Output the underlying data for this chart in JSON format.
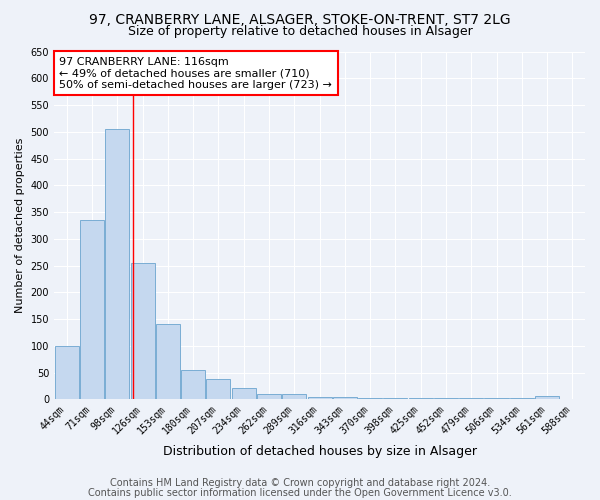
{
  "title1": "97, CRANBERRY LANE, ALSAGER, STOKE-ON-TRENT, ST7 2LG",
  "title2": "Size of property relative to detached houses in Alsager",
  "xlabel": "Distribution of detached houses by size in Alsager",
  "ylabel": "Number of detached properties",
  "categories": [
    "44sqm",
    "71sqm",
    "98sqm",
    "126sqm",
    "153sqm",
    "180sqm",
    "207sqm",
    "234sqm",
    "262sqm",
    "289sqm",
    "316sqm",
    "343sqm",
    "370sqm",
    "398sqm",
    "425sqm",
    "452sqm",
    "479sqm",
    "506sqm",
    "534sqm",
    "561sqm",
    "588sqm"
  ],
  "values": [
    100,
    335,
    505,
    255,
    140,
    55,
    38,
    22,
    10,
    10,
    5,
    5,
    3,
    3,
    3,
    3,
    3,
    3,
    3,
    7,
    0
  ],
  "bar_color": "#c5d8ef",
  "bar_edge_color": "#7aadd4",
  "red_line_x": 2.62,
  "annotation_lines": [
    "97 CRANBERRY LANE: 116sqm",
    "← 49% of detached houses are smaller (710)",
    "50% of semi-detached houses are larger (723) →"
  ],
  "footer1": "Contains HM Land Registry data © Crown copyright and database right 2024.",
  "footer2": "Contains public sector information licensed under the Open Government Licence v3.0.",
  "ylim": [
    0,
    650
  ],
  "yticks": [
    0,
    50,
    100,
    150,
    200,
    250,
    300,
    350,
    400,
    450,
    500,
    550,
    600,
    650
  ],
  "background_color": "#eef2f9",
  "grid_color": "#ffffff",
  "title1_fontsize": 10,
  "title2_fontsize": 9,
  "xlabel_fontsize": 9,
  "ylabel_fontsize": 8,
  "tick_fontsize": 7,
  "annotation_fontsize": 8,
  "footer_fontsize": 7
}
